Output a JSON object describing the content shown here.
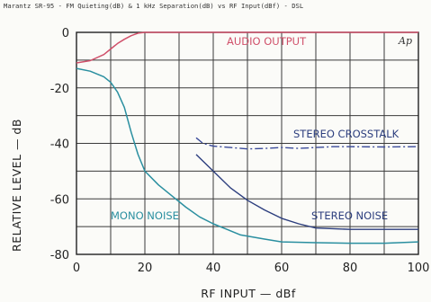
{
  "caption": "Marantz SR-95 -  FM Quieting(dB) & 1 kHz Separation(dB) vs RF Input(dBf)  - DSL",
  "logo": "Ap",
  "colors": {
    "audio_output": "#d0506a",
    "mono_noise": "#2a8fa0",
    "stereo_noise": "#2c3e7e",
    "stereo_crosstalk": "#3a4a9a",
    "grid": "#3a3a3a"
  },
  "chart_data": {
    "type": "line",
    "title": "Marantz SR-95 -  FM Quieting(dB) & 1 kHz Separation(dB) vs RF Input(dBf)  - DSL",
    "xlabel": "RF INPUT — dBf",
    "ylabel": "RELATIVE LEVEL — dB",
    "xlim": [
      0,
      100
    ],
    "ylim": [
      -80,
      0
    ],
    "x_ticks": [
      "0",
      "20",
      "40",
      "60",
      "80",
      "100"
    ],
    "y_ticks": [
      "0",
      "-20",
      "-40",
      "-60",
      "-80"
    ],
    "grid": true,
    "series": [
      {
        "name": "AUDIO OUTPUT",
        "x": [
          0,
          4,
          8,
          10,
          12,
          14,
          16,
          18,
          20,
          30,
          50,
          70,
          100
        ],
        "y": [
          -11,
          -10.2,
          -8,
          -6,
          -4,
          -2.5,
          -1.2,
          -0.3,
          0,
          0,
          0,
          0,
          0
        ]
      },
      {
        "name": "MONO NOISE",
        "x": [
          0,
          4,
          8,
          10,
          12,
          14,
          16,
          18,
          20,
          24,
          28,
          32,
          36,
          40,
          44,
          48,
          55,
          60,
          70,
          80,
          90,
          100
        ],
        "y": [
          -13,
          -14,
          -16,
          -18,
          -21.5,
          -27,
          -36,
          -44,
          -50,
          -55,
          -59,
          -63,
          -66.5,
          -69,
          -71,
          -73,
          -74.5,
          -75.5,
          -75.8,
          -76,
          -76,
          -75.5
        ]
      },
      {
        "name": "STEREO NOISE",
        "x": [
          35,
          40,
          45,
          50,
          55,
          60,
          65,
          70,
          80,
          90,
          100
        ],
        "y": [
          -44,
          -50,
          -56,
          -60.5,
          -64,
          -67,
          -69,
          -70.5,
          -71,
          -71,
          -71
        ]
      },
      {
        "name": "STEREO CROSSTALK",
        "x": [
          35,
          37,
          40,
          45,
          50,
          55,
          60,
          65,
          70,
          75,
          80,
          90,
          100
        ],
        "y": [
          -38,
          -40,
          -41,
          -41.5,
          -42,
          -41.8,
          -41.5,
          -41.8,
          -41.5,
          -41.2,
          -41.2,
          -41.3,
          -41.2
        ]
      }
    ]
  }
}
